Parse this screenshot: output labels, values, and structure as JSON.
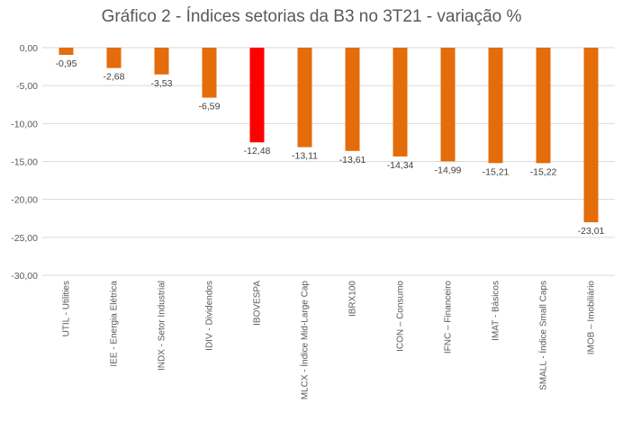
{
  "chart_data": {
    "type": "bar",
    "title": "Gráfico 2 - Índices setorias da B3 no 3T21 - variação %",
    "xlabel": "",
    "ylabel": "",
    "ylim": [
      -30,
      0
    ],
    "yticks": [
      0,
      -5,
      -10,
      -15,
      -20,
      -25,
      -30
    ],
    "ytick_labels": [
      "0,00",
      "-5,00",
      "-10,00",
      "-15,00",
      "-20,00",
      "-25,00",
      "-30,00"
    ],
    "grid": true,
    "categories": [
      "UTIL - Utilities",
      "IEE - Energia Elétrica",
      "INDX - Setor Industrial",
      "IDIV - Dividendos",
      "IBOVESPA",
      "MLCX - Índice Mid-Large Cap",
      "IBRX100",
      "ICON – Consumo",
      "IFNC – Financeiro",
      "IMAT - Básicos",
      "SMALL - Índice Small Caps",
      "IMOB – Imobiliário"
    ],
    "values": [
      -0.95,
      -2.68,
      -3.53,
      -6.59,
      -12.48,
      -13.11,
      -13.61,
      -14.34,
      -14.99,
      -15.21,
      -15.22,
      -23.01
    ],
    "value_labels": [
      "-0,95",
      "-2,68",
      "-3,53",
      "-6,59",
      "-12,48",
      "-13,11",
      "-13,61",
      "-14,34",
      "-14,99",
      "-15,21",
      "-15,22",
      "-23,01"
    ],
    "colors": {
      "default_bar": "#E46C0A",
      "highlight_bar": "#FF0000",
      "gridline": "#D9D9D9",
      "text": "#595959"
    },
    "highlight_category": "IBOVESPA"
  }
}
